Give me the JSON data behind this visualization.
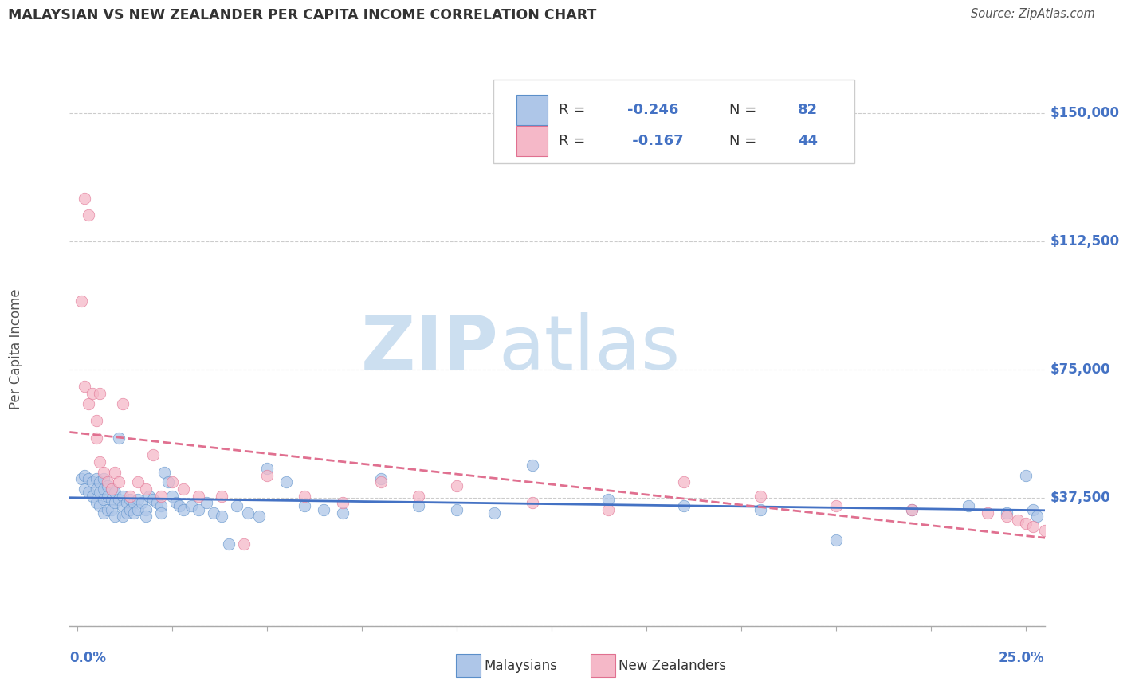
{
  "title": "MALAYSIAN VS NEW ZEALANDER PER CAPITA INCOME CORRELATION CHART",
  "source": "Source: ZipAtlas.com",
  "ylabel": "Per Capita Income",
  "yticks": [
    0,
    37500,
    75000,
    112500,
    150000
  ],
  "ytick_labels": [
    "",
    "$37,500",
    "$75,000",
    "$112,500",
    "$150,000"
  ],
  "xlim": [
    -0.002,
    0.255
  ],
  "ylim": [
    0,
    162000
  ],
  "malaysia_color": "#aec6e8",
  "malaysia_edge_color": "#5b8fc9",
  "malaysia_line_color": "#4472c4",
  "nz_color": "#f5b8c8",
  "nz_edge_color": "#e07090",
  "nz_line_color": "#e07090",
  "background_color": "#ffffff",
  "grid_color": "#cccccc",
  "watermark_color": "#ccdff0",
  "title_color": "#333333",
  "label_color": "#555555",
  "legend_text_color": "#333333",
  "legend_value_color": "#4472c4",
  "axis_label_color": "#4472c4",
  "malaysians_x": [
    0.001,
    0.002,
    0.002,
    0.003,
    0.003,
    0.004,
    0.004,
    0.005,
    0.005,
    0.005,
    0.006,
    0.006,
    0.006,
    0.007,
    0.007,
    0.007,
    0.007,
    0.008,
    0.008,
    0.008,
    0.009,
    0.009,
    0.009,
    0.01,
    0.01,
    0.01,
    0.011,
    0.011,
    0.012,
    0.012,
    0.012,
    0.013,
    0.013,
    0.014,
    0.014,
    0.015,
    0.015,
    0.016,
    0.016,
    0.017,
    0.018,
    0.018,
    0.019,
    0.02,
    0.021,
    0.022,
    0.022,
    0.023,
    0.024,
    0.025,
    0.026,
    0.027,
    0.028,
    0.03,
    0.032,
    0.034,
    0.036,
    0.038,
    0.04,
    0.042,
    0.045,
    0.048,
    0.05,
    0.055,
    0.06,
    0.065,
    0.07,
    0.08,
    0.09,
    0.1,
    0.11,
    0.12,
    0.14,
    0.16,
    0.18,
    0.2,
    0.22,
    0.235,
    0.245,
    0.25,
    0.252,
    0.253
  ],
  "malaysians_y": [
    43000,
    44000,
    40000,
    43000,
    39000,
    42000,
    38000,
    43000,
    40000,
    36000,
    42000,
    39000,
    35000,
    43000,
    40000,
    37000,
    33000,
    41000,
    38000,
    34000,
    40000,
    37000,
    34000,
    39000,
    36000,
    32000,
    55000,
    37000,
    38000,
    35000,
    32000,
    36000,
    33000,
    37000,
    34000,
    36000,
    33000,
    37000,
    34000,
    36000,
    34000,
    32000,
    38000,
    37000,
    36000,
    35000,
    33000,
    45000,
    42000,
    38000,
    36000,
    35000,
    34000,
    35000,
    34000,
    36000,
    33000,
    32000,
    24000,
    35000,
    33000,
    32000,
    46000,
    42000,
    35000,
    34000,
    33000,
    43000,
    35000,
    34000,
    33000,
    47000,
    37000,
    35000,
    34000,
    25000,
    34000,
    35000,
    33000,
    44000,
    34000,
    32000
  ],
  "nz_x": [
    0.001,
    0.002,
    0.002,
    0.003,
    0.003,
    0.004,
    0.005,
    0.005,
    0.006,
    0.006,
    0.007,
    0.008,
    0.009,
    0.01,
    0.011,
    0.012,
    0.014,
    0.016,
    0.018,
    0.02,
    0.022,
    0.025,
    0.028,
    0.032,
    0.038,
    0.044,
    0.05,
    0.06,
    0.07,
    0.08,
    0.09,
    0.1,
    0.12,
    0.14,
    0.16,
    0.18,
    0.2,
    0.22,
    0.24,
    0.245,
    0.248,
    0.25,
    0.252,
    0.255
  ],
  "nz_y": [
    95000,
    125000,
    70000,
    120000,
    65000,
    68000,
    60000,
    55000,
    68000,
    48000,
    45000,
    42000,
    40000,
    45000,
    42000,
    65000,
    38000,
    42000,
    40000,
    50000,
    38000,
    42000,
    40000,
    38000,
    38000,
    24000,
    44000,
    38000,
    36000,
    42000,
    38000,
    41000,
    36000,
    34000,
    42000,
    38000,
    35000,
    34000,
    33000,
    32000,
    31000,
    30000,
    29000,
    28000
  ]
}
